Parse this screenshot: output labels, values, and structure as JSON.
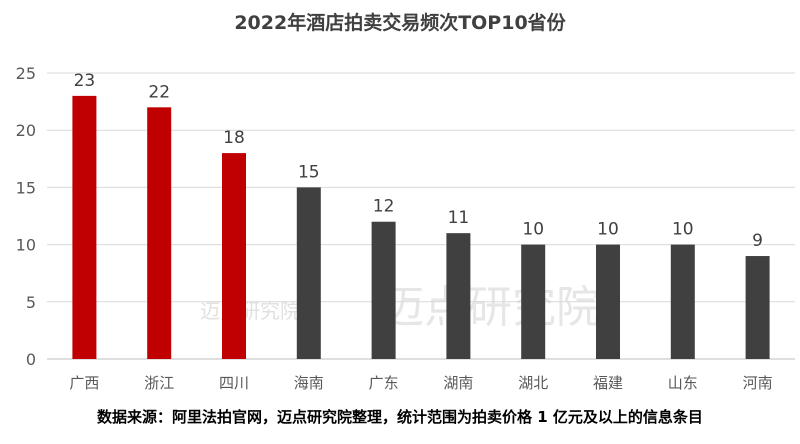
{
  "chart_data": {
    "type": "bar",
    "title": "2022年酒店拍卖交易频次TOP10省份",
    "categories": [
      "广西",
      "浙江",
      "四川",
      "海南",
      "广东",
      "湖南",
      "湖北",
      "福建",
      "山东",
      "河南"
    ],
    "values": [
      23,
      22,
      18,
      15,
      12,
      11,
      10,
      10,
      10,
      9
    ],
    "bar_colors": [
      "#C00000",
      "#C00000",
      "#C00000",
      "#404040",
      "#404040",
      "#404040",
      "#404040",
      "#404040",
      "#404040",
      "#404040"
    ],
    "ylim": [
      0,
      25
    ],
    "yticks": [
      0,
      5,
      10,
      15,
      20,
      25
    ],
    "grid": true,
    "data_labels": true,
    "xlabel": "",
    "ylabel": ""
  },
  "footer": "数据来源：阿里法拍官网，迈点研究院整理，统计范围为拍卖价格 1 亿元及以上的信息条目",
  "watermark": "迈点研究院"
}
